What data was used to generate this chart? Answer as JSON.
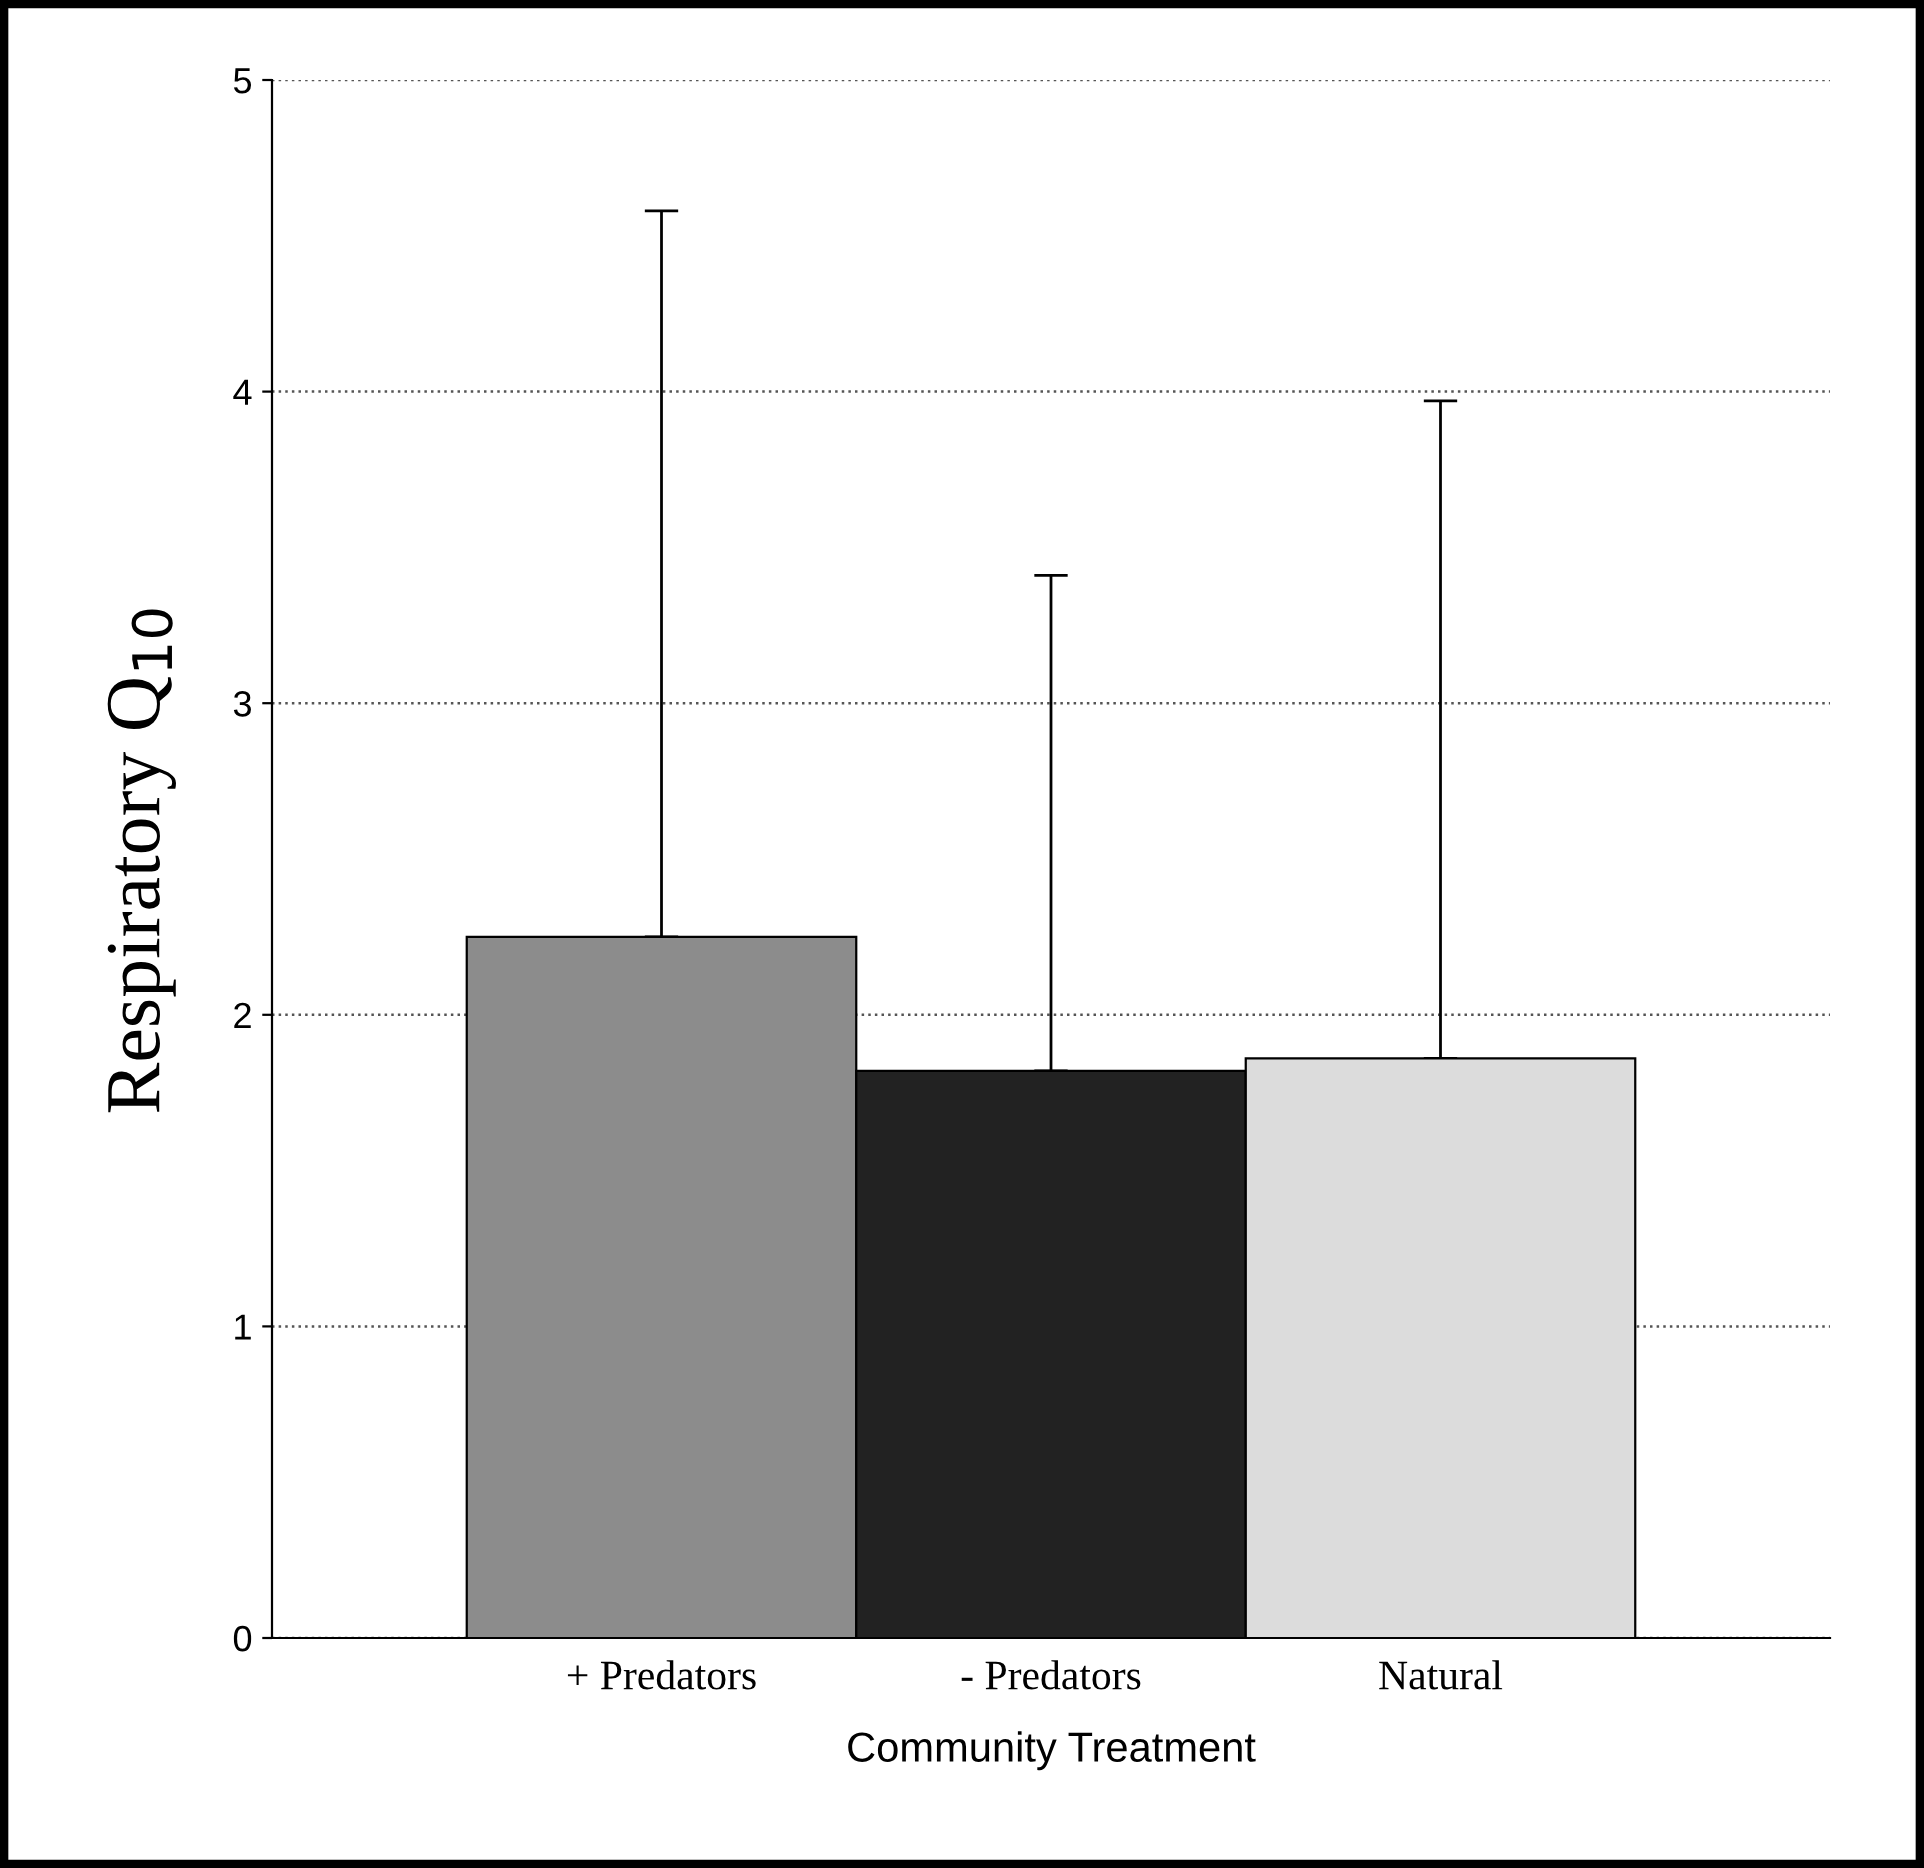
{
  "chart_data": {
    "type": "bar",
    "xlabel": "Community Treatment",
    "ylabel": "Respiratory Q$_{10}$",
    "categories": [
      "+ Predators",
      "- Predators",
      "Natural"
    ],
    "values": [
      2.25,
      1.82,
      1.86
    ],
    "colors": [
      "#8c8c8c",
      "#222222",
      "#dcdcdc"
    ],
    "errors": [
      [
        2.25,
        4.58
      ],
      [
        1.82,
        3.41
      ],
      [
        1.86,
        3.97
      ]
    ],
    "ylim": [
      0,
      5
    ],
    "yticks": [
      0,
      1,
      2,
      3,
      4,
      5
    ],
    "grid": "y",
    "line_style": "dotted"
  }
}
